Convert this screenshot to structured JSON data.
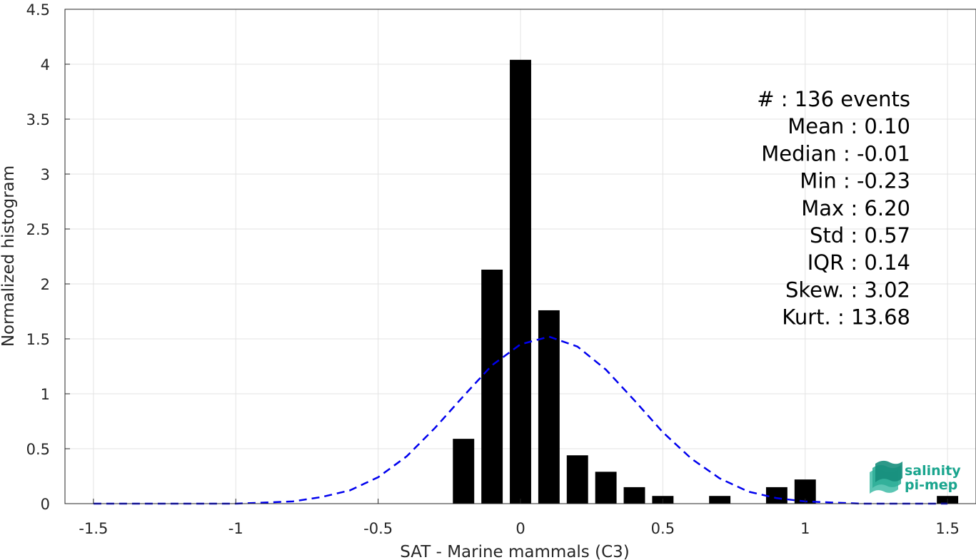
{
  "chart_data": {
    "type": "bar",
    "xlabel": "SAT - Marine mammals (C3)",
    "ylabel": "Normalized histogram",
    "xlim": [
      -1.6,
      1.6
    ],
    "ylim": [
      0,
      4.5
    ],
    "xticks": [
      -1.5,
      -1,
      -0.5,
      0,
      0.5,
      1,
      1.5
    ],
    "xtick_labels": [
      "-1.5",
      "-1",
      "-0.5",
      "0",
      "0.5",
      "1",
      "1.5"
    ],
    "yticks": [
      0,
      0.5,
      1,
      1.5,
      2,
      2.5,
      3,
      3.5,
      4,
      4.5
    ],
    "ytick_labels": [
      "0",
      "0.5",
      "1",
      "1.5",
      "2",
      "2.5",
      "3",
      "3.5",
      "4",
      "4.5"
    ],
    "grid": true,
    "bar_color": "#000000",
    "bar_width": 0.075,
    "bars": {
      "x": [
        -0.2,
        -0.1,
        0.0,
        0.1,
        0.2,
        0.3,
        0.4,
        0.5,
        0.7,
        0.9,
        1.0,
        1.5
      ],
      "values": [
        0.59,
        2.13,
        4.04,
        1.76,
        0.44,
        0.29,
        0.15,
        0.07,
        0.07,
        0.15,
        0.22,
        0.07
      ]
    },
    "fit_curve": {
      "style": "dashed",
      "color": "#0000ee",
      "x": [
        -1.5,
        -1.4,
        -1.3,
        -1.2,
        -1.1,
        -1.0,
        -0.9,
        -0.8,
        -0.7,
        -0.6,
        -0.5,
        -0.4,
        -0.3,
        -0.2,
        -0.1,
        0.0,
        0.1,
        0.2,
        0.3,
        0.4,
        0.5,
        0.6,
        0.7,
        0.8,
        0.9,
        1.0,
        1.1,
        1.2,
        1.3,
        1.4,
        1.5
      ],
      "y": [
        0.0,
        0.0,
        0.0,
        0.0,
        0.0,
        0.0,
        0.01,
        0.02,
        0.06,
        0.12,
        0.24,
        0.43,
        0.69,
        0.98,
        1.26,
        1.45,
        1.52,
        1.43,
        1.22,
        0.94,
        0.65,
        0.41,
        0.23,
        0.11,
        0.05,
        0.02,
        0.01,
        0.0,
        0.0,
        0.0,
        0.0
      ]
    }
  },
  "stats": [
    {
      "label": "#  : 136 events"
    },
    {
      "label": "Mean : 0.10"
    },
    {
      "label": "Median : -0.01"
    },
    {
      "label": "Min : -0.23"
    },
    {
      "label": "Max : 6.20"
    },
    {
      "label": "Std : 0.57"
    },
    {
      "label": "IQR : 0.14"
    },
    {
      "label": "Skew. : 3.02"
    },
    {
      "label": "Kurt. : 13.68"
    }
  ],
  "logo": {
    "line1": "salinity",
    "line2": "pi-mep",
    "color": "#1aa58e"
  }
}
